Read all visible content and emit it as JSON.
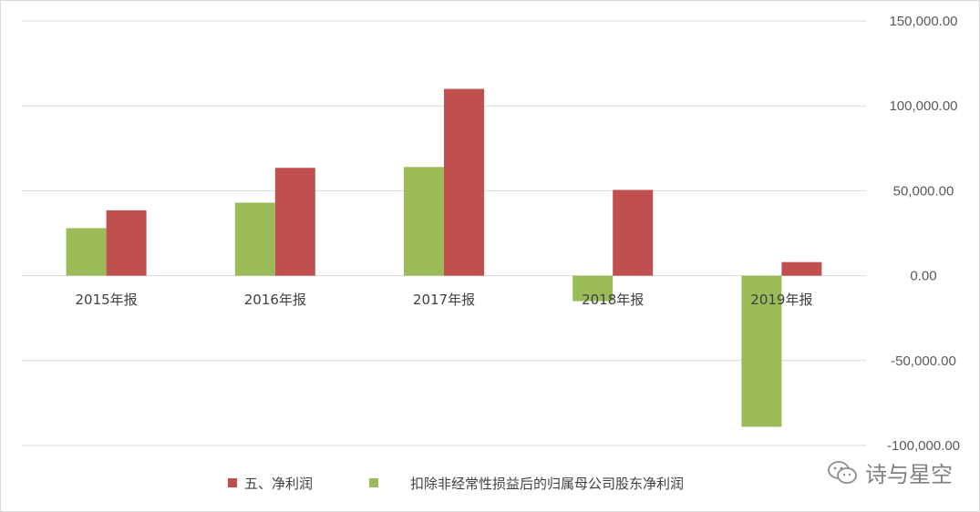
{
  "chart_data": {
    "type": "bar",
    "categories": [
      "2015年报",
      "2016年报",
      "2017年报",
      "2018年报",
      "2019年报"
    ],
    "series": [
      {
        "name": "扣除非经常性损益后的归属母公司股东净利润",
        "color": "#9bbb59",
        "values": [
          28000,
          43000,
          64000,
          -15000,
          -89000
        ]
      },
      {
        "name": "五、净利润",
        "color": "#c0504d",
        "values": [
          38500,
          63500,
          110000,
          50500,
          8000
        ]
      }
    ],
    "ylim": [
      -100000,
      150000
    ],
    "yticks": [
      150000,
      100000,
      50000,
      0,
      -50000,
      -100000
    ],
    "ytick_labels": [
      "150,000.00",
      "100,000.00",
      "50,000.00",
      "0.00",
      "-50,000.00",
      "-100,000.00"
    ],
    "y_axis_side": "right",
    "grid": true,
    "legend": {
      "placement": "bottom",
      "order": [
        "五、净利润",
        "扣除非经常性损益后的归属母公司股东净利润"
      ]
    },
    "title": "",
    "xlabel": "",
    "ylabel": ""
  },
  "watermark": {
    "text": "诗与星空",
    "icon": "wechat-icon"
  }
}
